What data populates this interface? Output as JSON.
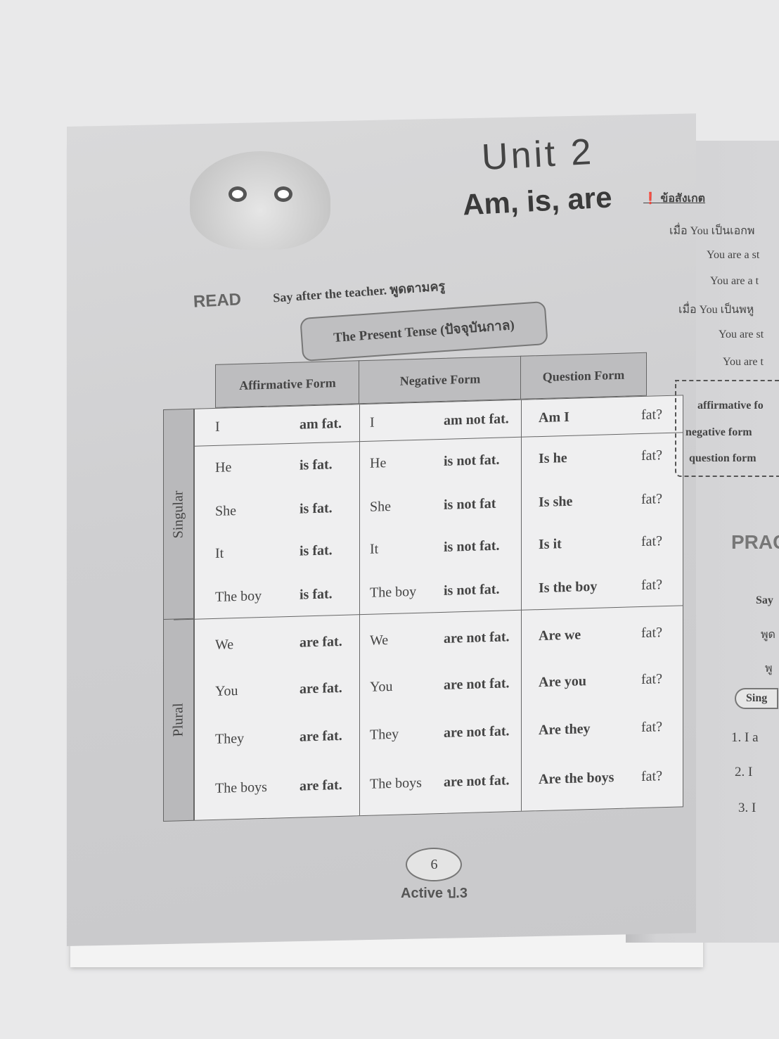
{
  "unit": {
    "title": "Unit 2",
    "subtitle": "Am, is, are"
  },
  "read": {
    "badge": "READ",
    "instruction": "Say after the teacher. พูดตามครู"
  },
  "section_title": "The Present Tense (ปัจจุบันกาล)",
  "table": {
    "headers": [
      "Affirmative Form",
      "Negative Form",
      "Question Form"
    ],
    "groups": [
      "Singular",
      "Plural"
    ],
    "rows": [
      {
        "a": [
          "I",
          "am fat."
        ],
        "n": [
          "I",
          "am not fat."
        ],
        "q": [
          "Am I",
          "fat?"
        ]
      },
      {
        "a": [
          "He",
          "is fat."
        ],
        "n": [
          "He",
          "is not fat."
        ],
        "q": [
          "Is he",
          "fat?"
        ]
      },
      {
        "a": [
          "She",
          "is fat."
        ],
        "n": [
          "She",
          "is not fat"
        ],
        "q": [
          "Is she",
          "fat?"
        ]
      },
      {
        "a": [
          "It",
          "is fat."
        ],
        "n": [
          "It",
          "is not fat."
        ],
        "q": [
          "Is it",
          "fat?"
        ]
      },
      {
        "a": [
          "The boy",
          "is fat."
        ],
        "n": [
          "The boy",
          "is not fat."
        ],
        "q": [
          "Is the boy",
          "fat?"
        ]
      },
      {
        "a": [
          "We",
          "are fat."
        ],
        "n": [
          "We",
          "are not fat."
        ],
        "q": [
          "Are we",
          "fat?"
        ]
      },
      {
        "a": [
          "You",
          "are fat."
        ],
        "n": [
          "You",
          "are not fat."
        ],
        "q": [
          "Are you",
          "fat?"
        ]
      },
      {
        "a": [
          "They",
          "are fat."
        ],
        "n": [
          "They",
          "are not fat."
        ],
        "q": [
          "Are they",
          "fat?"
        ]
      },
      {
        "a": [
          "The boys",
          "are fat."
        ],
        "n": [
          "The boys",
          "are not fat."
        ],
        "q": [
          "Are the boys",
          "fat?"
        ]
      }
    ]
  },
  "footer": {
    "page": "6",
    "brand": "Active ป.3"
  },
  "right": {
    "note_title": "ข้อสังเกต",
    "lines": [
      "เมื่อ You เป็นเอกพ",
      "You are a st",
      "You are a t",
      "เมื่อ You เป็นพหู",
      "You are st",
      "You are t"
    ],
    "box": [
      "affirmative fo",
      "negative form",
      "question form"
    ],
    "practice": "PRAC",
    "say": [
      "Say",
      "พูด",
      "พู"
    ],
    "sing": "Sing",
    "items": [
      "1. I a",
      "2. I",
      "3. I"
    ]
  }
}
